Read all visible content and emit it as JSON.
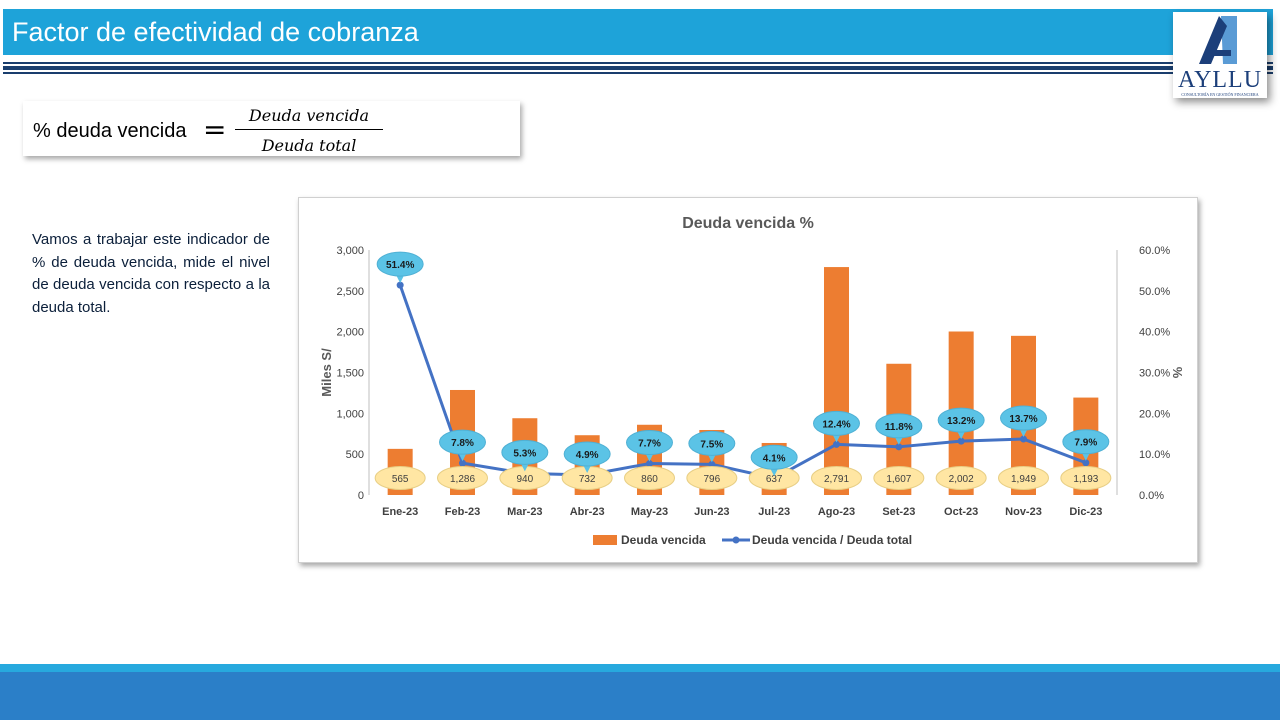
{
  "slide": {
    "title": "Factor de efectividad de cobranza",
    "description": "Vamos a trabajar este indicador de % de deuda vencida, mide el nivel de deuda vencida con respecto a la deuda total."
  },
  "logo": {
    "name": "AYLLU",
    "tagline": "CONSULTORÍA EN GESTIÓN FINANCIERA",
    "colors": {
      "primary": "#1C3F7A",
      "secondary": "#5A9BD5"
    }
  },
  "formula": {
    "lhs": "% deuda vencida",
    "eq": "=",
    "numerator": "Deuda vencida",
    "denominator": "Deuda total"
  },
  "colors": {
    "title_bar": "#1EA3D9",
    "rule": "#1A3E6E",
    "footer": "#2B7FC8",
    "bar": "#ED7D31",
    "line": "#4472C4",
    "callout": "#5BC3E6",
    "bar_label_bg": "#FFE6A3"
  },
  "chart_data": {
    "type": "bar",
    "title": "Deuda vencida %",
    "categories": [
      "Ene-23",
      "Feb-23",
      "Mar-23",
      "Abr-23",
      "May-23",
      "Jun-23",
      "Jul-23",
      "Ago-23",
      "Set-23",
      "Oct-23",
      "Nov-23",
      "Dic-23"
    ],
    "series": [
      {
        "name": "Deuda vencida",
        "type": "bar",
        "axis": "left",
        "values": [
          565,
          1286,
          940,
          732,
          860,
          796,
          637,
          2791,
          1607,
          2002,
          1949,
          1193
        ],
        "labels": [
          "565",
          "1,286",
          "940",
          "732",
          "860",
          "796",
          "637",
          "2,791",
          "1,607",
          "2,002",
          "1,949",
          "1,193"
        ]
      },
      {
        "name": "Deuda vencida / Deuda total",
        "type": "line",
        "axis": "right",
        "values": [
          51.4,
          7.8,
          5.3,
          4.9,
          7.7,
          7.5,
          4.1,
          12.4,
          11.8,
          13.2,
          13.7,
          7.9
        ],
        "labels": [
          "51.4%",
          "7.8%",
          "5.3%",
          "4.9%",
          "7.7%",
          "7.5%",
          "4.1%",
          "12.4%",
          "11.8%",
          "13.2%",
          "13.7%",
          "7.9%"
        ]
      }
    ],
    "ylabel": "Miles S/",
    "ylabel_right": "%",
    "ylim": [
      0,
      3000
    ],
    "ylim_right": [
      0,
      60
    ],
    "yticks": [
      "0",
      "500",
      "1,000",
      "1,500",
      "2,000",
      "2,500",
      "3,000"
    ],
    "yticks_right": [
      "0.0%",
      "10.0%",
      "20.0%",
      "30.0%",
      "40.0%",
      "50.0%",
      "60.0%"
    ],
    "grid": false,
    "legend_position": "bottom"
  }
}
